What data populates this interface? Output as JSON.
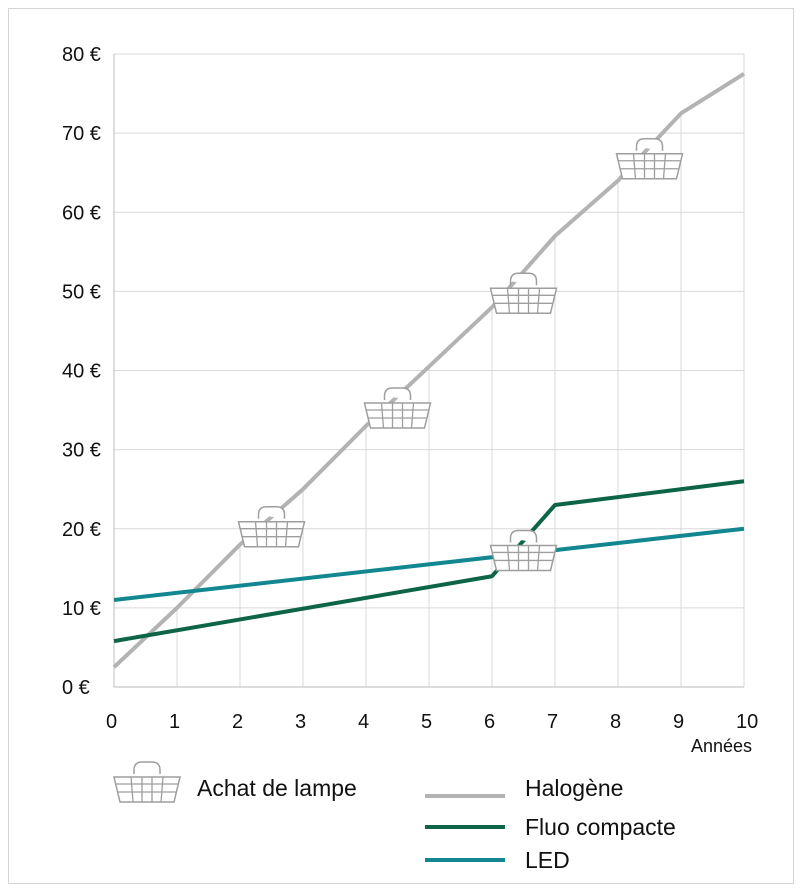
{
  "chart_data": {
    "type": "line",
    "xlabel": "Années",
    "ylabel": "",
    "xlim": [
      0,
      10
    ],
    "ylim": [
      0,
      80
    ],
    "x_ticks": [
      "0",
      "1",
      "2",
      "3",
      "4",
      "5",
      "6",
      "7",
      "8",
      "9",
      "10"
    ],
    "y_ticks": [
      "0 €",
      "10 €",
      "20 €",
      "30 €",
      "40 €",
      "50 €",
      "60 €",
      "70 €",
      "80 €"
    ],
    "grid": true,
    "series": [
      {
        "name": "Halogène",
        "color": "#b3b3b3",
        "x": [
          0,
          1,
          2,
          3,
          4,
          5,
          6,
          7,
          8,
          9,
          10
        ],
        "y": [
          2.5,
          10,
          18,
          25,
          33,
          40.5,
          48,
          57,
          64,
          72.5,
          77.5
        ]
      },
      {
        "name": "Fluo compacte",
        "color": "#0d6447",
        "x": [
          0,
          6,
          7,
          10
        ],
        "y": [
          5.8,
          14,
          23,
          26
        ]
      },
      {
        "name": "LED",
        "color": "#12878f",
        "x": [
          0,
          10
        ],
        "y": [
          11,
          20
        ]
      }
    ],
    "annotations": {
      "icon": "basket-icon",
      "label": "Achat de lampe",
      "points": [
        {
          "x": 2.5,
          "y": 19.5
        },
        {
          "x": 4.5,
          "y": 34.5
        },
        {
          "x": 6.5,
          "y": 49
        },
        {
          "x": 8.5,
          "y": 66
        },
        {
          "x": 6.5,
          "y": 16.5
        }
      ]
    },
    "legend_position": "bottom"
  }
}
